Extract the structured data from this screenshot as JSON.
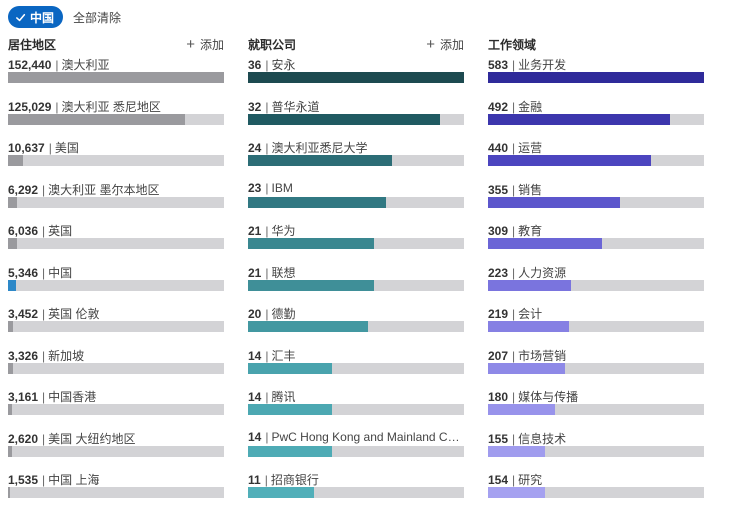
{
  "filter_chip": {
    "label": "中国"
  },
  "clear_all": "全部清除",
  "add_label": "添加",
  "columns": [
    {
      "title": "居住地区",
      "rows": [
        {
          "count": "152,440",
          "label": "澳大利亚",
          "value": 152440,
          "color": "#9a9a9e"
        },
        {
          "count": "125,029",
          "label": "澳大利亚 悉尼地区",
          "value": 125029,
          "color": "#9a9a9e"
        },
        {
          "count": "10,637",
          "label": "美国",
          "value": 10637,
          "color": "#9a9a9e"
        },
        {
          "count": "6,292",
          "label": "澳大利亚 墨尔本地区",
          "value": 6292,
          "color": "#9a9a9e"
        },
        {
          "count": "6,036",
          "label": "英国",
          "value": 6036,
          "color": "#9a9a9e"
        },
        {
          "count": "5,346",
          "label": "中国",
          "value": 5346,
          "color": "#2d88c8"
        },
        {
          "count": "3,452",
          "label": "英国 伦敦",
          "value": 3452,
          "color": "#9a9a9e"
        },
        {
          "count": "3,326",
          "label": "新加坡",
          "value": 3326,
          "color": "#9a9a9e"
        },
        {
          "count": "3,161",
          "label": "中国香港",
          "value": 3161,
          "color": "#9a9a9e"
        },
        {
          "count": "2,620",
          "label": "美国 大纽约地区",
          "value": 2620,
          "color": "#9a9a9e"
        },
        {
          "count": "1,535",
          "label": "中国 上海",
          "value": 1535,
          "color": "#9a9a9e"
        }
      ]
    },
    {
      "title": "就职公司",
      "rows": [
        {
          "count": "36",
          "label": "安永",
          "value": 36,
          "color": "#1d4a50"
        },
        {
          "count": "32",
          "label": "普华永道",
          "value": 32,
          "color": "#205a62"
        },
        {
          "count": "24",
          "label": "澳大利亚悉尼大学",
          "value": 24,
          "color": "#2c6d76"
        },
        {
          "count": "23",
          "label": "IBM",
          "value": 23,
          "color": "#317882"
        },
        {
          "count": "21",
          "label": "华为",
          "value": 21,
          "color": "#3a8790"
        },
        {
          "count": "21",
          "label": "联想",
          "value": 21,
          "color": "#3f8f98"
        },
        {
          "count": "20",
          "label": "德勤",
          "value": 20,
          "color": "#4398a1"
        },
        {
          "count": "14",
          "label": "汇丰",
          "value": 14,
          "color": "#49a3ad"
        },
        {
          "count": "14",
          "label": "腾讯",
          "value": 14,
          "color": "#4ca8b2"
        },
        {
          "count": "14",
          "label": "PwC Hong Kong and Mainland China",
          "value": 14,
          "color": "#4eabb5"
        },
        {
          "count": "11",
          "label": "招商银行",
          "value": 11,
          "color": "#51afb9"
        }
      ]
    },
    {
      "title": "工作领域",
      "rows": [
        {
          "count": "583",
          "label": "业务开发",
          "value": 583,
          "color": "#2f2a9a"
        },
        {
          "count": "492",
          "label": "金融",
          "value": 492,
          "color": "#3c36ad"
        },
        {
          "count": "440",
          "label": "运营",
          "value": 440,
          "color": "#4c45bf"
        },
        {
          "count": "355",
          "label": "销售",
          "value": 355,
          "color": "#5c56cc"
        },
        {
          "count": "309",
          "label": "教育",
          "value": 309,
          "color": "#6b65d6"
        },
        {
          "count": "223",
          "label": "人力资源",
          "value": 223,
          "color": "#7a74de"
        },
        {
          "count": "219",
          "label": "会计",
          "value": 219,
          "color": "#8680e3"
        },
        {
          "count": "207",
          "label": "市场营销",
          "value": 207,
          "color": "#8e89e7"
        },
        {
          "count": "180",
          "label": "媒体与传播",
          "value": 180,
          "color": "#9893eb"
        },
        {
          "count": "155",
          "label": "信息技术",
          "value": 155,
          "color": "#a09cee"
        },
        {
          "count": "154",
          "label": "研究",
          "value": 154,
          "color": "#a5a1f0"
        }
      ]
    }
  ]
}
